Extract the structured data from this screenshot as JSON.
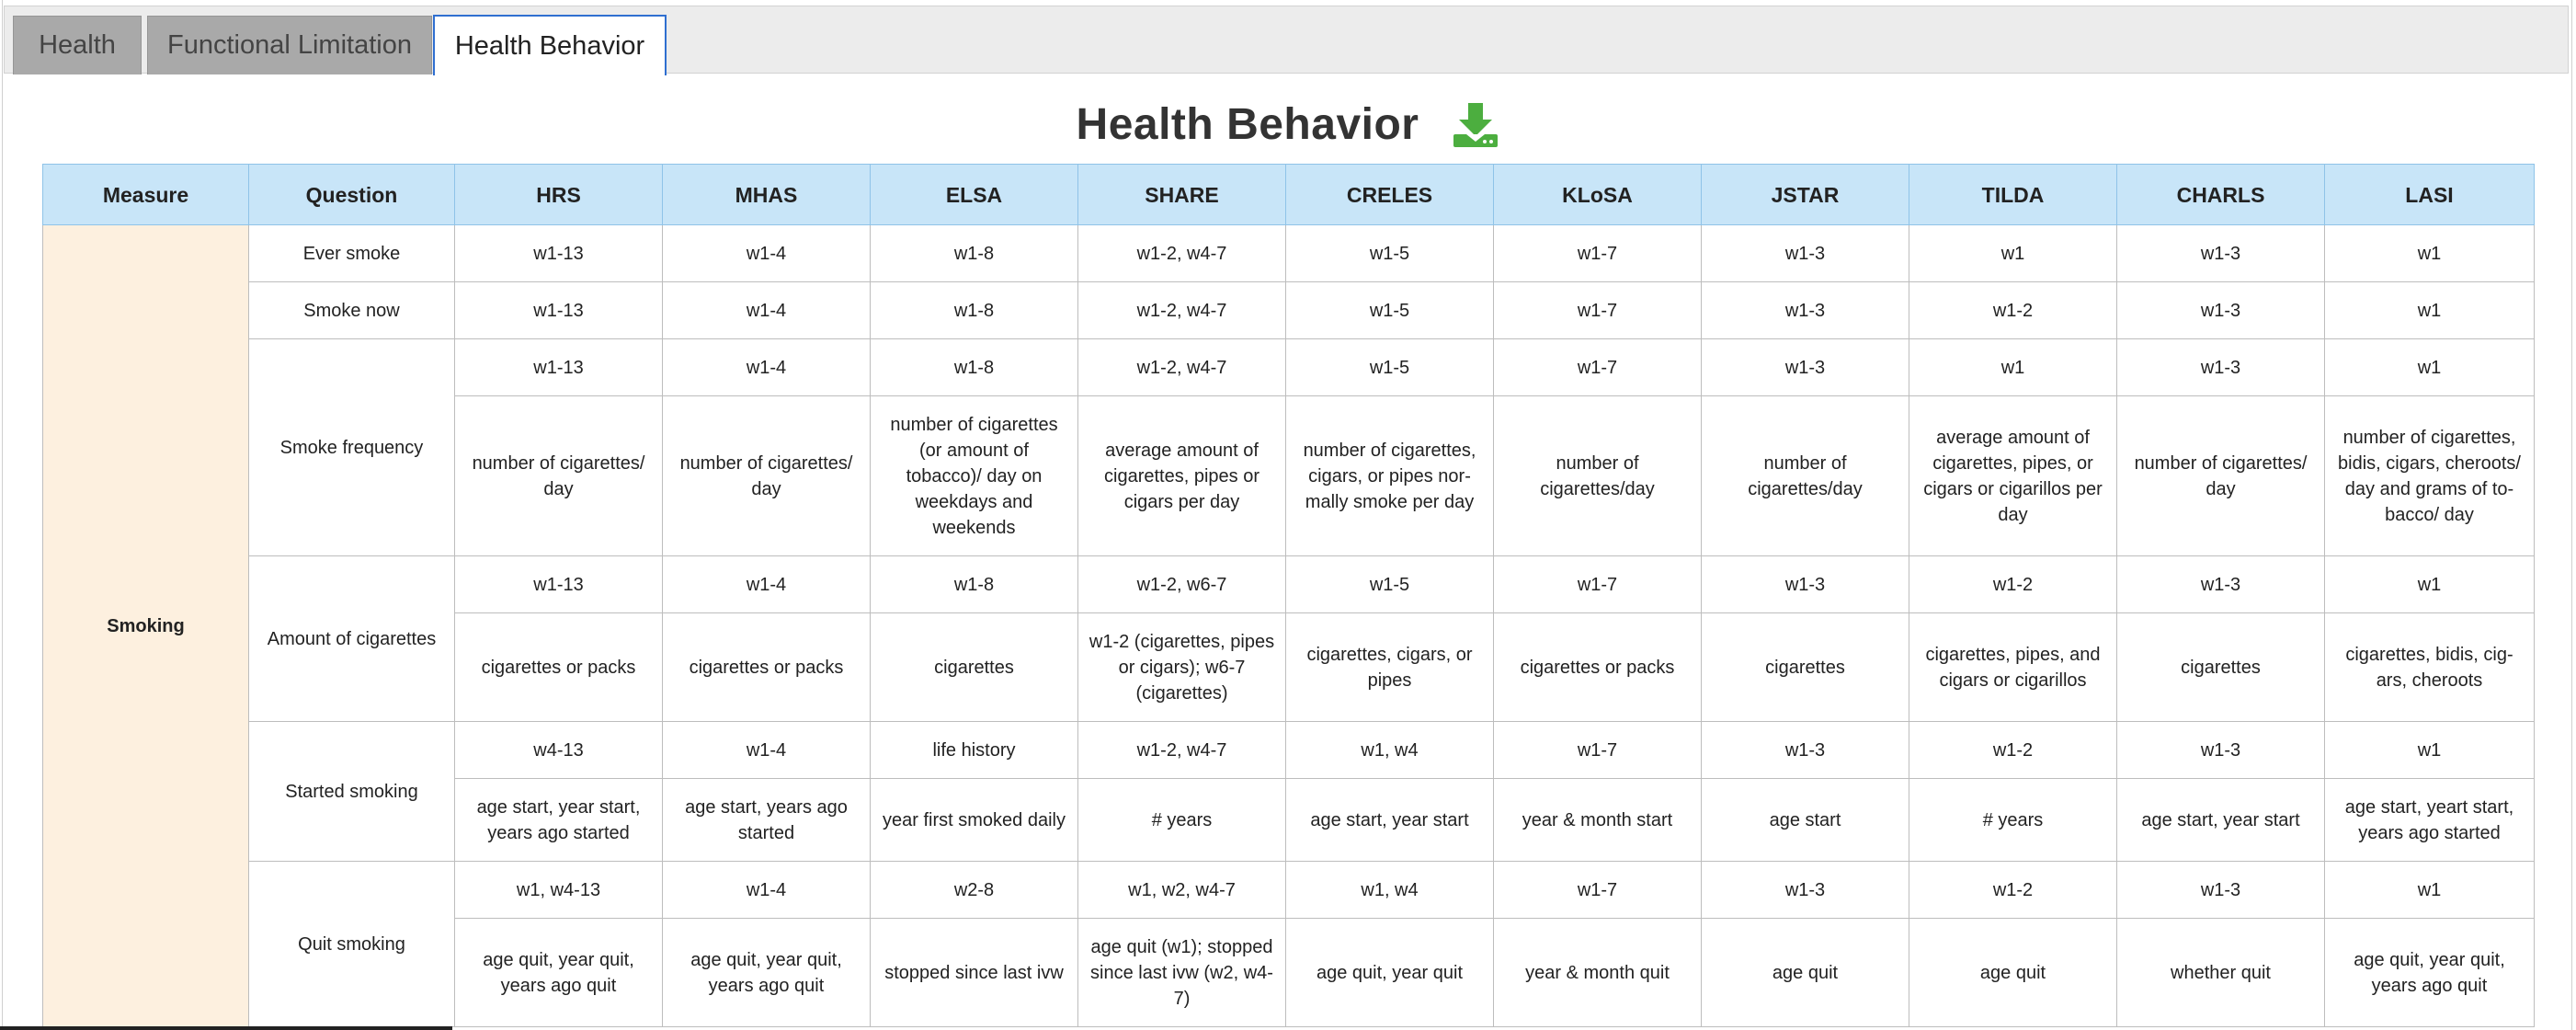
{
  "tabs": [
    {
      "label": "Health"
    },
    {
      "label": "Functional Limitation"
    },
    {
      "label": "Health Behavior"
    }
  ],
  "page": {
    "title": "Health Behavior",
    "download_icon": "download-icon",
    "accent_color": "#4cae3f"
  },
  "table": {
    "headers": [
      "Measure",
      "Question",
      "HRS",
      "MHAS",
      "ELSA",
      "SHARE",
      "CRELES",
      "KLoSA",
      "JSTAR",
      "TILDA",
      "CHARLS",
      "LASI"
    ],
    "measure": "Smoking",
    "questions": {
      "ever_smoke": "Ever smoke",
      "smoke_now": "Smoke now",
      "smoke_frequency": "Smoke frequency",
      "amount_of_cigarettes": "Amount of cigarettes",
      "started_smoking": "Started smoking",
      "quit_smoking": "Quit smoking"
    },
    "rows": {
      "ever_smoke": [
        "w1-13",
        "w1-4",
        "w1-8",
        "w1-2, w4-7",
        "w1-5",
        "w1-7",
        "w1-3",
        "w1",
        "w1-3",
        "w1"
      ],
      "smoke_now": [
        "w1-13",
        "w1-4",
        "w1-8",
        "w1-2, w4-7",
        "w1-5",
        "w1-7",
        "w1-3",
        "w1-2",
        "w1-3",
        "w1"
      ],
      "freq_waves": [
        "w1-13",
        "w1-4",
        "w1-8",
        "w1-2, w4-7",
        "w1-5",
        "w1-7",
        "w1-3",
        "w1",
        "w1-3",
        "w1"
      ],
      "freq_desc": [
        "number of cigarettes/ day",
        "number of cigarettes/ day",
        "number of cigarettes (or amount of tobacco)/ day on weekdays and weekends",
        "average amount of cigarettes, pipes or cigars per day",
        "number of cigarettes, cigars, or pipes nor- mally smoke per day",
        "number of cigarettes/day",
        "number of cigarettes/day",
        "average amount of cigarettes, pipes, or cigars or cigarillos per day",
        "number of cigarettes/ day",
        "number of cigarettes, bidis, cigars, cheroots/ day and grams of to- bacco/ day"
      ],
      "amount_waves": [
        "w1-13",
        "w1-4",
        "w1-8",
        "w1-2, w6-7",
        "w1-5",
        "w1-7",
        "w1-3",
        "w1-2",
        "w1-3",
        "w1"
      ],
      "amount_desc": [
        "cigarettes or packs",
        "cigarettes or packs",
        "cigarettes",
        "w1-2 (cigarettes, pipes or cigars); w6-7 (cigarettes)",
        "cigarettes, cigars, or pipes",
        "cigarettes or packs",
        "cigarettes",
        "cigarettes, pipes, and cigars or cigarillos",
        "cigarettes",
        "cigarettes, bidis, cig- ars, cheroots"
      ],
      "started_waves": [
        "w4-13",
        "w1-4",
        "life history",
        "w1-2, w4-7",
        "w1, w4",
        "w1-7",
        "w1-3",
        "w1-2",
        "w1-3",
        "w1"
      ],
      "started_desc": [
        "age start, year start, years ago started",
        "age start, years ago started",
        "year first smoked daily",
        "# years",
        "age start, year start",
        "year & month start",
        "age start",
        "# years",
        "age start, year start",
        "age start, yeart start, years ago started"
      ],
      "quit_waves": [
        "w1, w4-13",
        "w1-4",
        "w2-8",
        "w1, w2, w4-7",
        "w1, w4",
        "w1-7",
        "w1-3",
        "w1-2",
        "w1-3",
        "w1"
      ],
      "quit_desc": [
        "age quit, year quit, years ago quit",
        "age quit, year quit, years ago quit",
        "stopped since last ivw",
        "age quit (w1); stopped since last ivw (w2, w4- 7)",
        "age quit, year quit",
        "year & month quit",
        "age quit",
        "age quit",
        "whether quit",
        "age quit, year quit, years ago quit"
      ]
    }
  }
}
